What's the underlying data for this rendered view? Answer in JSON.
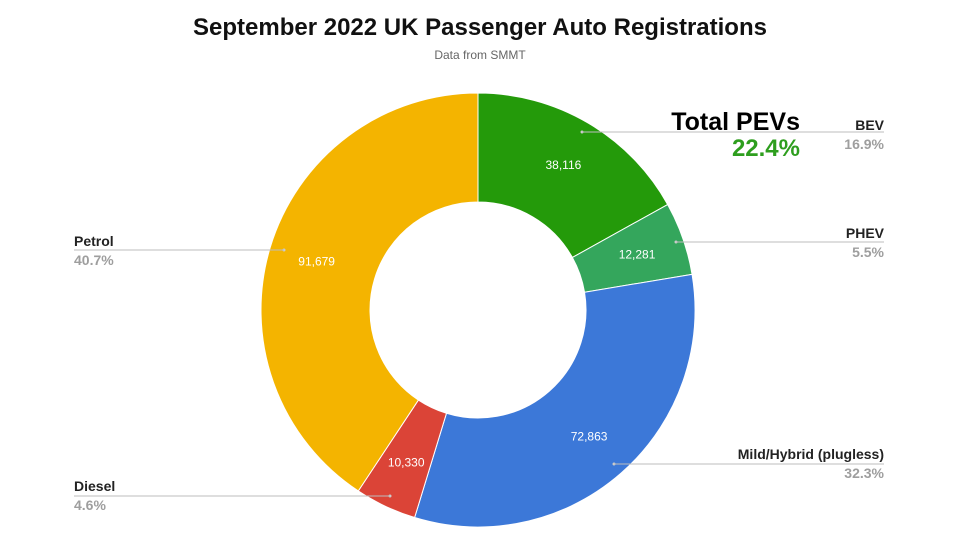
{
  "chart_data": {
    "type": "pie",
    "title": "September 2022 UK Passenger Auto Registrations",
    "subtitle": "Data from SMMT",
    "donut": true,
    "slices": [
      {
        "label": "BEV",
        "value": 38116,
        "value_label": "38,116",
        "percent_label": "16.9%",
        "color": "#249a0a"
      },
      {
        "label": "PHEV",
        "value": 12281,
        "value_label": "12,281",
        "percent_label": "5.5%",
        "color": "#34a65c"
      },
      {
        "label": "Mild/Hybrid (plugless)",
        "value": 72863,
        "value_label": "72,863",
        "percent_label": "32.3%",
        "color": "#3c78d8"
      },
      {
        "label": "Diesel",
        "value": 10330,
        "value_label": "10,330",
        "percent_label": "4.6%",
        "color": "#db4437"
      },
      {
        "label": "Petrol",
        "value": 91679,
        "value_label": "91,679",
        "percent_label": "40.7%",
        "color": "#f4b400"
      }
    ],
    "annotation": {
      "label": "Total PEVs",
      "value": "22.4%",
      "color": "#2e9e1e"
    }
  }
}
